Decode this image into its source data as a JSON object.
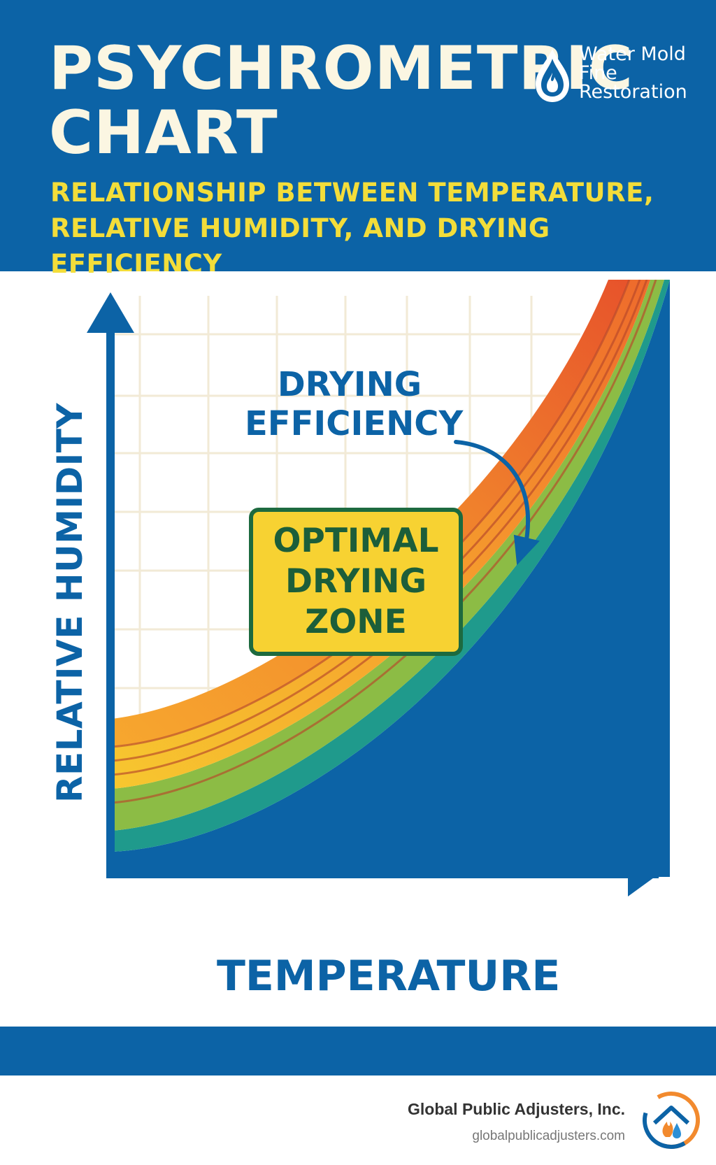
{
  "header": {
    "title_line1": "PSYCHROMETRIC",
    "title_line2": "CHART",
    "subtitle_line1": "RELATIONSHIP BETWEEN TEMPERATURE,",
    "subtitle_line2": "RELATIVE HUMIDITY, AND DRYING EFFICIENCY"
  },
  "brand": {
    "line1": "Water Mold",
    "line2": "Fine",
    "line3": "Restoration",
    "icon": "water-drop-flame-icon"
  },
  "chart": {
    "ylabel": "RELATIVE HUMIDITY",
    "xlabel": "TEMPERATURE",
    "annotation_line1": "DRYING",
    "annotation_line2": "EFFICIENCY",
    "zone_line1": "OPTIMAL",
    "zone_line2": "DRYING",
    "zone_line3": "ZONE",
    "band_colors": [
      "#e8552b",
      "#f28a2e",
      "#f7c52f",
      "#8cbc45",
      "#1f9a8c",
      "#0c63a6"
    ]
  },
  "footer": {
    "company": "Global Public Adjusters, Inc.",
    "website": "globalpublicadjusters.com",
    "logo_icon": "house-flame-drop-icon"
  },
  "colors": {
    "primary_blue": "#0c63a6",
    "title_cream": "#fbf6e2",
    "subtitle_yellow": "#f3dd3a",
    "zone_yellow": "#f7d232",
    "zone_green": "#1d6a3f"
  }
}
